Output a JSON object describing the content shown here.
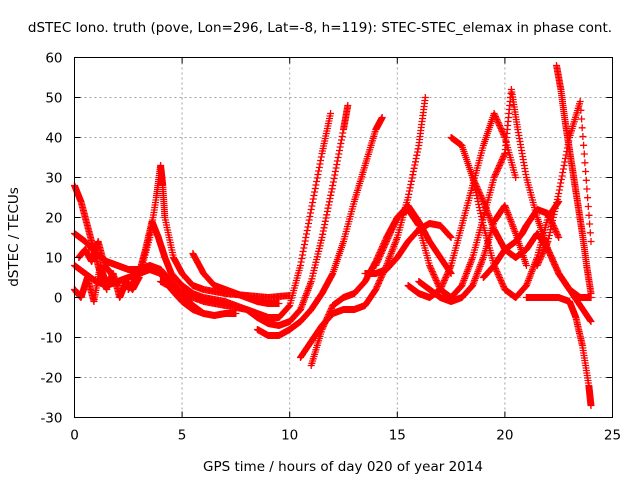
{
  "chart_data": {
    "type": "scatter",
    "title": "dSTEC Iono. truth (pove, Lon=296, Lat=-8, h=119): STEC-STEC_elemax in phase cont.",
    "xlabel": "GPS time / hours of day 020 of year 2014",
    "ylabel": "dSTEC  / TECUs",
    "xlim": [
      0,
      25
    ],
    "ylim": [
      -30,
      60
    ],
    "xticks": [
      0,
      5,
      10,
      15,
      20,
      25
    ],
    "yticks": [
      -30,
      -20,
      -10,
      0,
      10,
      20,
      30,
      40,
      50,
      60
    ],
    "xtick_labels": [
      "0",
      "5",
      "10",
      "15",
      "20",
      "25"
    ],
    "ytick_labels": [
      "-30",
      "-20",
      "-10",
      "0",
      "10",
      "20",
      "30",
      "40",
      "50",
      "60"
    ],
    "grid": true,
    "marker": "plus",
    "color": "#ff0000",
    "series": [
      {
        "x": [
          0.0,
          0.3,
          0.6,
          0.9,
          1.2,
          1.5
        ],
        "y": [
          28,
          24,
          18,
          12,
          6,
          2
        ]
      },
      {
        "x": [
          0.0,
          0.5,
          1.0,
          1.5,
          2.0,
          2.5,
          3.0,
          3.5,
          4.0,
          4.5,
          5.0,
          5.5,
          6.0
        ],
        "y": [
          16,
          14,
          11,
          9,
          8,
          7,
          7,
          8,
          7,
          4,
          1,
          -2,
          -4
        ]
      },
      {
        "x": [
          0.0,
          0.5,
          1.0,
          1.5,
          2.0,
          2.5,
          3.0,
          3.5,
          4.0,
          4.5,
          5.0,
          5.5,
          6.0,
          6.5,
          7.0,
          7.5
        ],
        "y": [
          8,
          6,
          4,
          3,
          4,
          5,
          6,
          7,
          6,
          2,
          -1,
          -3,
          -4,
          -4.5,
          -4,
          -4
        ]
      },
      {
        "x": [
          0.0,
          0.3,
          0.6,
          0.9,
          1.2,
          1.5,
          1.8,
          2.1,
          2.4,
          2.7,
          3.0
        ],
        "y": [
          2,
          0,
          5,
          -1,
          8,
          3,
          6,
          0,
          4,
          2,
          5
        ]
      },
      {
        "x": [
          0.2,
          0.5,
          0.8,
          1.1,
          1.4,
          1.7,
          2.0
        ],
        "y": [
          10,
          12,
          9,
          14,
          8,
          6,
          3
        ]
      },
      {
        "x": [
          2.5,
          3.0,
          3.3,
          3.6,
          3.9,
          4.2,
          4.5,
          5.0,
          5.5
        ],
        "y": [
          2,
          6,
          12,
          19,
          15,
          10,
          6,
          3,
          1
        ]
      },
      {
        "x": [
          3.0,
          3.5,
          3.8,
          4.0,
          4.1,
          4.2,
          4.6,
          5.0,
          5.5,
          6.0,
          7.0,
          8.0,
          9.0,
          10.0
        ],
        "y": [
          5,
          15,
          25,
          33,
          28,
          20,
          10,
          6,
          3,
          2,
          1,
          0.5,
          0,
          0.5
        ]
      },
      {
        "x": [
          5.5,
          6.0,
          6.5,
          7.0,
          7.5,
          8.0,
          8.5,
          9.0,
          9.5
        ],
        "y": [
          11,
          6,
          3,
          2,
          1,
          0,
          -1,
          -1.5,
          -1.5
        ]
      },
      {
        "x": [
          4.0,
          5.0,
          6.0,
          7.0,
          8.0,
          8.5,
          9.0,
          9.5,
          10.0,
          10.5,
          11.0,
          11.5,
          11.9
        ],
        "y": [
          4,
          1,
          -1,
          -2,
          -3,
          -4,
          -5,
          -5,
          -2,
          8,
          22,
          36,
          46
        ]
      },
      {
        "x": [
          5.0,
          6.0,
          7.0,
          8.0,
          8.5,
          9.0,
          9.5,
          10.0,
          10.5,
          11.0,
          11.5,
          12.0,
          12.5,
          12.7
        ],
        "y": [
          2,
          0,
          -1,
          -3,
          -5,
          -6.5,
          -7,
          -6,
          -3,
          4,
          15,
          28,
          42,
          48
        ]
      },
      {
        "x": [
          8.5,
          9.0,
          9.5,
          10.0,
          10.5,
          11.0,
          11.5,
          12.0,
          12.5,
          13.0,
          13.5,
          14.0,
          14.3
        ],
        "y": [
          -8,
          -9.5,
          -9.5,
          -8,
          -6,
          -3,
          1,
          6,
          14,
          24,
          33,
          42,
          45
        ]
      },
      {
        "x": [
          10.5,
          11.0,
          11.5,
          12.0,
          12.5,
          13.0,
          13.5,
          14.0,
          14.5,
          15.0,
          15.5,
          16.0,
          16.3
        ],
        "y": [
          -15,
          -11,
          -7,
          -4,
          -3,
          -3,
          -2,
          2,
          8,
          15,
          25,
          38,
          50
        ]
      },
      {
        "x": [
          11.0,
          11.5,
          12.0,
          12.5,
          13.0,
          13.5,
          14.0,
          14.5,
          15.0,
          15.5,
          16.0,
          16.5,
          17.0,
          17.5
        ],
        "y": [
          -17,
          -8,
          -2,
          0,
          1,
          4,
          9,
          15,
          20,
          23,
          19,
          14,
          10,
          6
        ]
      },
      {
        "x": [
          13.5,
          14.0,
          14.5,
          15.0,
          15.5,
          16.0,
          16.5,
          17.0,
          17.5
        ],
        "y": [
          6,
          6,
          7,
          10,
          14,
          17,
          18.5,
          18,
          15
        ]
      },
      {
        "x": [
          14.0,
          14.5,
          15.0,
          15.5,
          16.0,
          16.5,
          17.0,
          17.5,
          18.0,
          18.5,
          19.0,
          19.5,
          20.0
        ],
        "y": [
          8,
          14,
          20,
          22,
          18,
          8,
          2,
          0,
          3,
          10,
          20,
          30,
          36
        ]
      },
      {
        "x": [
          15.5,
          16.0,
          16.5,
          17.0,
          17.5,
          18.0,
          18.5,
          19.0,
          19.5,
          20.0,
          20.5
        ],
        "y": [
          3,
          1,
          0,
          2,
          8,
          18,
          28,
          38,
          46,
          40,
          30
        ]
      },
      {
        "x": [
          16.0,
          16.5,
          17.0,
          17.5,
          18.0,
          18.5,
          19.0,
          19.5,
          20.0,
          20.5,
          21.0
        ],
        "y": [
          4,
          2,
          0,
          -1,
          0,
          3,
          10,
          19,
          23,
          16,
          8
        ]
      },
      {
        "x": [
          17.5,
          18.0,
          18.5,
          19.0,
          19.5,
          20.0,
          20.5,
          21.0,
          21.5,
          22.0,
          22.5
        ],
        "y": [
          40,
          38,
          30,
          18,
          8,
          2,
          0,
          3,
          10,
          20,
          24
        ]
      },
      {
        "x": [
          18.5,
          19.0,
          19.5,
          20.0,
          20.5,
          21.0,
          21.5,
          22.0,
          22.5,
          23.0,
          23.5,
          24.0
        ],
        "y": [
          30,
          24,
          17,
          12,
          10,
          12,
          16,
          12,
          6,
          2,
          -2,
          -6
        ]
      },
      {
        "x": [
          19.0,
          19.5,
          20.0,
          20.5,
          20.8,
          21.0,
          21.5,
          22.0,
          22.5
        ],
        "y": [
          5,
          8,
          12,
          14,
          16,
          18,
          22,
          21,
          15
        ]
      },
      {
        "x": [
          20.0,
          20.3,
          20.6,
          21.0,
          21.5,
          22.0,
          22.5,
          23.0,
          23.5,
          24.0
        ],
        "y": [
          36,
          52,
          42,
          30,
          20,
          12,
          6,
          2,
          0,
          0
        ]
      },
      {
        "x": [
          21.5,
          22.0,
          22.5,
          23.0,
          23.5,
          24.0
        ],
        "y": [
          8,
          14,
          26,
          40,
          49,
          14
        ]
      },
      {
        "x": [
          22.4,
          22.6,
          22.8,
          23.0,
          23.2,
          23.4,
          23.6,
          23.8,
          24.0
        ],
        "y": [
          58,
          52,
          44,
          37,
          30,
          23,
          16,
          8,
          1
        ]
      },
      {
        "x": [
          21.0,
          21.5,
          22.0,
          22.5,
          23.0,
          23.3,
          23.6,
          23.9,
          24.0
        ],
        "y": [
          0,
          0,
          0,
          0,
          -1,
          -5,
          -12,
          -22,
          -27
        ]
      }
    ]
  }
}
